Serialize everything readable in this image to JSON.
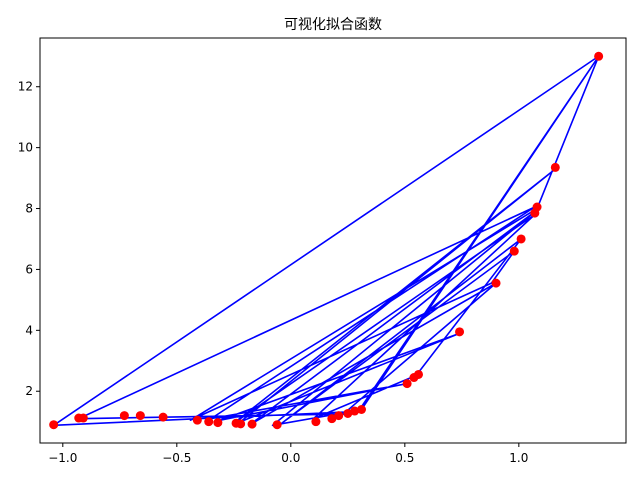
{
  "chart_data": {
    "type": "line",
    "title": "可视化拟合函数",
    "xlabel": "",
    "ylabel": "",
    "xlim": [
      -1.1,
      1.47
    ],
    "ylim": [
      0.3,
      13.6
    ],
    "grid": false,
    "legend": "none",
    "x_ticks": [
      -1.0,
      -0.5,
      0.0,
      0.5,
      1.0
    ],
    "x_tick_labels": [
      "−1.0",
      "−0.5",
      "0.0",
      "0.5",
      "1.0"
    ],
    "y_ticks": [
      2,
      4,
      6,
      8,
      10,
      12
    ],
    "y_tick_labels": [
      "2",
      "4",
      "6",
      "8",
      "10",
      "12"
    ],
    "colors": {
      "line": "#0000ff",
      "points": "#ff0000"
    },
    "series": [
      {
        "style": "line",
        "x": [
          -1.04,
          1.35,
          1.08,
          -0.44,
          0.88,
          0.98,
          -0.04,
          1.01,
          0.55,
          0.1,
          1.07,
          -0.25,
          1.16,
          -0.22,
          0.74,
          -0.31,
          0.51,
          -0.35,
          1.07,
          -0.93,
          0.23,
          0.9,
          -0.18,
          1.08,
          -0.08,
          0.3,
          1.35,
          0.31,
          0.18,
          0.27,
          -1.04
        ],
        "y": [
          0.88,
          13.0,
          8.0,
          1.05,
          5.55,
          6.6,
          0.95,
          7.0,
          2.52,
          1.1,
          7.8,
          0.95,
          9.3,
          1.0,
          3.9,
          1.05,
          2.25,
          1.1,
          8.05,
          1.1,
          1.25,
          5.55,
          0.9,
          7.95,
          0.88,
          1.38,
          13.0,
          1.4,
          1.15,
          1.33,
          0.88
        ]
      },
      {
        "style": "scatter",
        "x": [
          -1.04,
          -0.93,
          -0.91,
          -0.73,
          -0.66,
          -0.56,
          -0.41,
          -0.36,
          -0.32,
          -0.24,
          -0.22,
          -0.17,
          -0.06,
          0.11,
          0.18,
          0.21,
          0.25,
          0.28,
          0.31,
          0.51,
          0.54,
          0.56,
          0.74,
          0.9,
          0.98,
          1.01,
          1.07,
          1.08,
          1.16,
          1.35
        ],
        "y": [
          0.9,
          1.12,
          1.12,
          1.2,
          1.2,
          1.15,
          1.05,
          1.0,
          0.97,
          0.95,
          0.93,
          0.92,
          0.9,
          1.0,
          1.1,
          1.2,
          1.27,
          1.35,
          1.4,
          2.25,
          2.45,
          2.55,
          3.95,
          5.55,
          6.6,
          7.0,
          7.85,
          8.05,
          9.35,
          13.0
        ]
      }
    ]
  }
}
